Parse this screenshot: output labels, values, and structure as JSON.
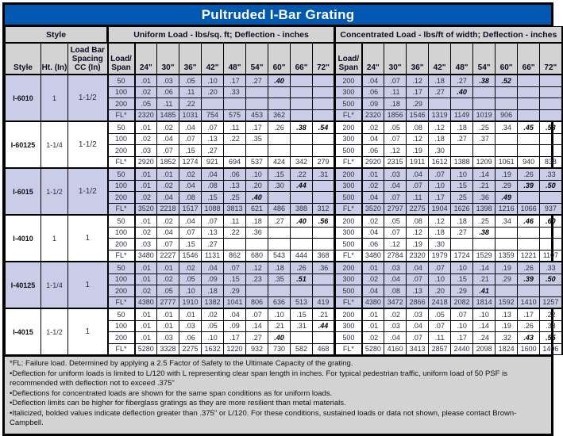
{
  "title": "Pultruded I-Bar Grating",
  "header": {
    "style_group": "Style",
    "uniform_group": "Uniform Load - lbs/sq. ft; Deflection - inches",
    "concentrated_group": "Concentrated Load - lbs/ft of width; Deflection - inches",
    "col_style": "Style",
    "col_ht": "Ht. (In)",
    "col_spacing": "Load Bar Spacing CC (In)",
    "col_load_span": "Load/ Span",
    "spans": [
      "24\"",
      "30\"",
      "36\"",
      "42\"",
      "48\"",
      "54\"",
      "60\"",
      "66\"",
      "72\""
    ]
  },
  "colors": {
    "title_bg": "#0058b0",
    "header_bg": "#d3d3d3",
    "shaded_row": "#c9cde8",
    "border": "#000000"
  },
  "table": {
    "groups": [
      {
        "style": "I-6010",
        "ht": "1",
        "spacing": "1-1/2",
        "shaded": true,
        "rows": [
          {
            "u_load": "50",
            "u": [
              ".01",
              ".03",
              ".05",
              ".10",
              ".17",
              ".27",
              {
                "v": ".40",
                "em": true
              },
              "",
              ""
            ],
            "c_load": "200",
            "c": [
              ".04",
              ".07",
              ".12",
              ".18",
              ".27",
              {
                "v": ".38",
                "em": true
              },
              {
                "v": ".52",
                "em": true
              },
              "",
              ""
            ]
          },
          {
            "u_load": "100",
            "u": [
              ".02",
              ".06",
              ".11",
              ".20",
              ".33",
              "",
              "",
              "",
              ""
            ],
            "c_load": "300",
            "c": [
              ".06",
              ".11",
              ".17",
              ".27",
              {
                "v": ".40",
                "em": true
              },
              "",
              "",
              "",
              ""
            ]
          },
          {
            "u_load": "200",
            "u": [
              ".05",
              ".11",
              ".22",
              "",
              "",
              "",
              "",
              "",
              ""
            ],
            "c_load": "500",
            "c": [
              ".09",
              ".18",
              ".29",
              "",
              "",
              "",
              "",
              "",
              ""
            ]
          },
          {
            "u_load": "FL*",
            "u": [
              "2320",
              "1485",
              "1031",
              "754",
              "575",
              "453",
              "362",
              "",
              ""
            ],
            "c_load": "FL*",
            "c": [
              "2320",
              "1856",
              "1546",
              "1319",
              "1149",
              "1019",
              "906",
              "",
              ""
            ]
          }
        ]
      },
      {
        "style": "I-60125",
        "ht": "1-1/4",
        "spacing": "1-1/2",
        "shaded": false,
        "rows": [
          {
            "u_load": "50",
            "u": [
              ".01",
              ".02",
              ".04",
              ".07",
              ".11",
              ".17",
              ".26",
              {
                "v": ".38",
                "em": true
              },
              {
                "v": ".54",
                "em": true
              }
            ],
            "c_load": "200",
            "c": [
              ".02",
              ".05",
              ".08",
              ".12",
              ".18",
              ".25",
              ".34",
              {
                "v": ".45",
                "em": true
              },
              {
                "v": ".58",
                "em": true
              }
            ]
          },
          {
            "u_load": "100",
            "u": [
              ".02",
              ".04",
              ".07",
              ".13",
              ".22",
              ".35",
              "",
              "",
              ""
            ],
            "c_load": "300",
            "c": [
              ".04",
              ".07",
              ".12",
              ".18",
              ".27",
              ".37",
              "",
              "",
              ""
            ]
          },
          {
            "u_load": "200",
            "u": [
              ".03",
              ".07",
              ".15",
              ".27",
              "",
              "",
              "",
              "",
              ""
            ],
            "c_load": "500",
            "c": [
              ".06",
              ".12",
              ".19",
              ".30",
              "",
              "",
              "",
              "",
              ""
            ]
          },
          {
            "u_load": "FL*",
            "u": [
              "2920",
              "1852",
              "1274",
              "921",
              "694",
              "537",
              "424",
              "342",
              "279"
            ],
            "c_load": "FL*",
            "c": [
              "2920",
              "2315",
              "1911",
              "1612",
              "1388",
              "1209",
              "1061",
              "940",
              "838"
            ]
          }
        ]
      },
      {
        "style": "I-6015",
        "ht": "1-1/2",
        "spacing": "1-1/2",
        "shaded": true,
        "rows": [
          {
            "u_load": "50",
            "u": [
              ".01",
              ".01",
              ".02",
              ".04",
              ".06",
              ".10",
              ".15",
              ".22",
              ".31"
            ],
            "c_load": "200",
            "c": [
              ".01",
              ".03",
              ".04",
              ".07",
              ".10",
              ".14",
              ".19",
              ".26",
              ".33"
            ]
          },
          {
            "u_load": "100",
            "u": [
              ".01",
              ".02",
              ".04",
              ".08",
              ".13",
              ".20",
              ".30",
              {
                "v": ".44",
                "em": true
              },
              ""
            ],
            "c_load": "300",
            "c": [
              ".02",
              ".04",
              ".07",
              ".10",
              ".15",
              ".21",
              ".29",
              {
                "v": ".39",
                "em": true
              },
              {
                "v": ".50",
                "em": true
              }
            ]
          },
          {
            "u_load": "200",
            "u": [
              ".02",
              ".04",
              ".08",
              ".15",
              ".25",
              {
                "v": ".40",
                "em": true
              },
              "",
              "",
              ""
            ],
            "c_load": "500",
            "c": [
              ".04",
              ".07",
              ".11",
              ".17",
              ".25",
              ".36",
              {
                "v": ".49",
                "em": true
              },
              "",
              ""
            ]
          },
          {
            "u_load": "FL*",
            "u": [
              "3520",
              "2218",
              "1517",
              "1088",
              "3813",
              "621",
              "486",
              "388",
              "312"
            ],
            "c_load": "FL*",
            "c": [
              "3520",
              "2797",
              "2275",
              "1904",
              "1626",
              "1398",
              "1216",
              "1066",
              "937"
            ]
          }
        ]
      },
      {
        "style": "I-4010",
        "ht": "1",
        "spacing": "1",
        "shaded": false,
        "rows": [
          {
            "u_load": "50",
            "u": [
              ".01",
              ".02",
              ".04",
              ".07",
              ".11",
              ".18",
              ".27",
              {
                "v": ".40",
                "em": true
              },
              {
                "v": ".56",
                "em": true
              }
            ],
            "c_load": "200",
            "c": [
              ".02",
              ".05",
              ".08",
              ".12",
              ".18",
              ".25",
              ".34",
              {
                "v": ".46",
                "em": true
              },
              {
                "v": ".60",
                "em": true
              }
            ]
          },
          {
            "u_load": "100",
            "u": [
              ".02",
              ".04",
              ".07",
              ".13",
              ".22",
              ".36",
              "",
              "",
              ""
            ],
            "c_load": "300",
            "c": [
              ".04",
              ".07",
              ".12",
              ".18",
              ".27",
              {
                "v": ".38",
                "em": true
              },
              "",
              "",
              ""
            ]
          },
          {
            "u_load": "200",
            "u": [
              ".03",
              ".07",
              ".15",
              ".27",
              "",
              "",
              "",
              "",
              ""
            ],
            "c_load": "500",
            "c": [
              ".06",
              ".12",
              ".19",
              ".30",
              "",
              "",
              "",
              "",
              ""
            ]
          },
          {
            "u_load": "FL*",
            "u": [
              "3480",
              "2227",
              "1546",
              "1131",
              "862",
              "680",
              "543",
              "444",
              "368"
            ],
            "c_load": "FL*",
            "c": [
              "3480",
              "2784",
              "2320",
              "1979",
              "1724",
              "1529",
              "1359",
              "1221",
              "1107"
            ]
          }
        ]
      },
      {
        "style": "I-40125",
        "ht": "1-1/4",
        "spacing": "1",
        "shaded": true,
        "rows": [
          {
            "u_load": "50",
            "u": [
              ".01",
              ".01",
              ".02",
              ".04",
              ".07",
              ".12",
              ".18",
              ".26",
              ".36"
            ],
            "c_load": "200",
            "c": [
              ".01",
              ".03",
              ".04",
              ".07",
              ".10",
              ".14",
              ".19",
              ".26",
              ".33"
            ]
          },
          {
            "u_load": "100",
            "u": [
              ".01",
              ".02",
              ".05",
              ".09",
              ".15",
              ".23",
              ".35",
              {
                "v": ".51",
                "em": true
              },
              ""
            ],
            "c_load": "300",
            "c": [
              ".02",
              ".04",
              ".07",
              ".10",
              ".15",
              ".21",
              ".29",
              {
                "v": ".39",
                "em": true
              },
              {
                "v": ".50",
                "em": true
              }
            ]
          },
          {
            "u_load": "200",
            "u": [
              ".02",
              ".05",
              ".10",
              ".18",
              ".29",
              "",
              "",
              "",
              ""
            ],
            "c_load": "500",
            "c": [
              ".04",
              ".08",
              ".13",
              ".20",
              ".29",
              {
                "v": ".41",
                "em": true
              },
              "",
              "",
              ""
            ]
          },
          {
            "u_load": "FL*",
            "u": [
              "4380",
              "2777",
              "1910",
              "1382",
              "1041",
              "806",
              "636",
              "513",
              "419"
            ],
            "c_load": "FL*",
            "c": [
              "4380",
              "3472",
              "2866",
              "2418",
              "2082",
              "1814",
              "1592",
              "1410",
              "1257"
            ]
          }
        ]
      },
      {
        "style": "I-4015",
        "ht": "1-1/2",
        "spacing": "1",
        "shaded": false,
        "rows": [
          {
            "u_load": "50",
            "u": [
              ".01",
              ".01",
              ".01",
              ".02",
              ".04",
              ".07",
              ".10",
              ".15",
              ".21"
            ],
            "c_load": "200",
            "c": [
              ".01",
              ".02",
              ".03",
              ".05",
              ".07",
              ".10",
              ".13",
              ".17",
              ".22"
            ]
          },
          {
            "u_load": "100",
            "u": [
              ".01",
              ".01",
              ".03",
              ".05",
              ".09",
              ".14",
              ".21",
              ".31",
              {
                "v": ".44",
                "em": true
              }
            ],
            "c_load": "300",
            "c": [
              ".01",
              ".03",
              ".04",
              ".07",
              ".10",
              ".14",
              ".19",
              ".26",
              ".33"
            ]
          },
          {
            "u_load": "200",
            "u": [
              ".01",
              ".03",
              ".06",
              ".10",
              ".17",
              ".27",
              {
                "v": ".40",
                "em": true
              },
              "",
              ""
            ],
            "c_load": "500",
            "c": [
              ".02",
              ".04",
              ".07",
              ".11",
              ".17",
              ".24",
              ".32",
              {
                "v": ".43",
                "em": true
              },
              {
                "v": ".55",
                "em": true
              }
            ]
          },
          {
            "u_load": "FL*",
            "u": [
              "5280",
              "3328",
              "2275",
              "1632",
              "1220",
              "932",
              "730",
              "582",
              "468"
            ],
            "c_load": "FL*",
            "c": [
              "5280",
              "4160",
              "3413",
              "2857",
              "2440",
              "2098",
              "1824",
              "1600",
              "1406"
            ]
          }
        ]
      }
    ]
  },
  "footnotes": [
    "*FL:  Failure load.  Determined by applying a 2.5 Factor of Safety to the Ultimate Capacity of the grating.",
    "•Deflection for uniform loads is limited to L/120 with L representing clear span length in inches.  For typical pedestrian traffic, uniform load of 50 PSF is recommended with deflection not to exceed .375\"",
    "•Deflections for concentrated loads are shown for the same span conditions as for uniform loads.",
    "•Deflection limits can be higher for fiberglass gratings as they are more resilient than metal materials.",
    "•Italicized, bolded values indicate deflection greater than .375\" or L/120.  For these conditions, sustained loads or data not shown, please contact Brown-Campbell."
  ]
}
